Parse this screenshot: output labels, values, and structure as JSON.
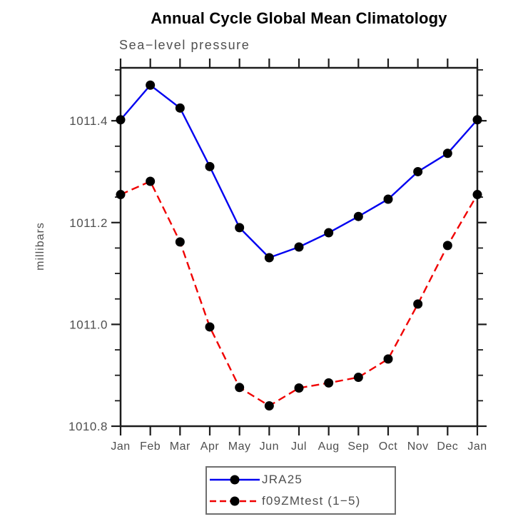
{
  "chart_data": {
    "type": "line",
    "title": "Annual Cycle Global Mean Climatology",
    "subtitle": "Sea−level pressure",
    "ylabel": "millibars",
    "xlabel": "",
    "categories": [
      "Jan",
      "Feb",
      "Mar",
      "Apr",
      "May",
      "Jun",
      "Jul",
      "Aug",
      "Sep",
      "Oct",
      "Nov",
      "Dec",
      "Jan"
    ],
    "series": [
      {
        "name": "JRA25",
        "color": "#0000f0",
        "line_style": "solid",
        "marker": "filled-circle",
        "marker_color": "#000000",
        "values": [
          1011.402,
          1011.47,
          1011.425,
          1011.31,
          1011.19,
          1011.131,
          1011.152,
          1011.18,
          1011.212,
          1011.246,
          1011.3,
          1011.336,
          1011.402
        ]
      },
      {
        "name": "f09ZMtest (1−5)",
        "color": "#f00000",
        "line_style": "dashed",
        "marker": "filled-circle",
        "marker_color": "#000000",
        "values": [
          1011.255,
          1011.281,
          1011.162,
          1010.995,
          1010.876,
          1010.84,
          1010.875,
          1010.885,
          1010.896,
          1010.932,
          1011.04,
          1011.155,
          1011.255
        ]
      }
    ],
    "ylim": [
      1010.8,
      1011.504
    ],
    "yticks_major": {
      "values": [
        1010.8,
        1011.0,
        1011.2,
        1011.4
      ],
      "labels": [
        "1010.8",
        "1011.0",
        "1011.2",
        "1011.4"
      ]
    },
    "ytick_minor_step": 0.05,
    "grid": false,
    "legend_position": "bottom-center",
    "axes_color": "#1c1c1c",
    "label_color": "#4f4f4f"
  }
}
